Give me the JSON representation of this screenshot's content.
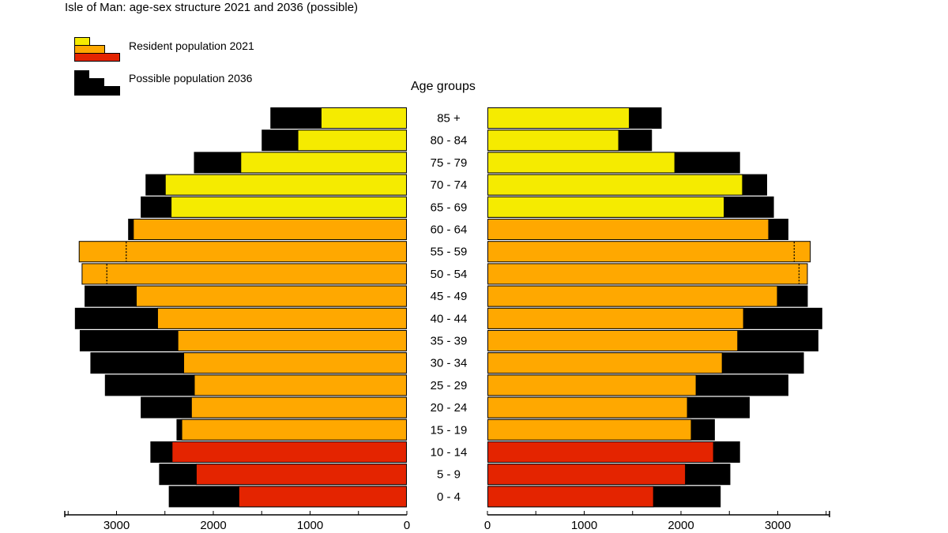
{
  "title": "Isle of Man: age-sex structure 2021 and 2036 (possible)",
  "legend": {
    "resident_label": "Resident population 2021",
    "possible_label": "Possible population 2036"
  },
  "age_header": "Age groups",
  "colors": {
    "old_age": "#F5EB00",
    "working_age": "#FFA800",
    "young_age": "#E42400",
    "projection": "#000000"
  },
  "chart_data": {
    "type": "bar",
    "title": "Isle of Man: age-sex structure 2021 and 2036 (possible)",
    "categories": [
      "85 +",
      "80 - 84",
      "75 - 79",
      "70 - 74",
      "65 - 69",
      "60 - 64",
      "55 - 59",
      "50 - 54",
      "45 - 49",
      "40 - 44",
      "35 - 39",
      "30 - 34",
      "25 - 29",
      "20 - 24",
      "15 - 19",
      "10 - 14",
      "5 - 9",
      "0 - 4"
    ],
    "category_group": [
      "old",
      "old",
      "old",
      "old",
      "old",
      "working",
      "working",
      "working",
      "working",
      "working",
      "working",
      "working",
      "working",
      "working",
      "working",
      "young",
      "young",
      "young"
    ],
    "series": [
      {
        "name": "Resident population 2021",
        "side": "left",
        "values": [
          890,
          1130,
          1720,
          2500,
          2440,
          2830,
          3390,
          3360,
          2800,
          2580,
          2370,
          2310,
          2200,
          2230,
          2330,
          2430,
          2180,
          1740
        ]
      },
      {
        "name": "Possible population 2036",
        "side": "left",
        "values": [
          1410,
          1500,
          2200,
          2700,
          2750,
          2880,
          2900,
          3100,
          3330,
          3430,
          3380,
          3270,
          3120,
          2750,
          2380,
          2650,
          2560,
          2460
        ]
      },
      {
        "name": "Resident population 2021",
        "side": "right",
        "values": [
          1470,
          1360,
          1940,
          2640,
          2450,
          2910,
          3340,
          3310,
          3000,
          2650,
          2590,
          2430,
          2160,
          2070,
          2110,
          2340,
          2050,
          1720
        ]
      },
      {
        "name": "Possible population 2036",
        "side": "right",
        "values": [
          1800,
          1700,
          2610,
          2890,
          2960,
          3110,
          3170,
          3220,
          3310,
          3460,
          3420,
          3270,
          3110,
          2710,
          2350,
          2610,
          2510,
          2410
        ]
      }
    ],
    "xlim": [
      0,
      3500
    ],
    "ticks": [
      "0",
      "1000",
      "2000",
      "3000"
    ],
    "legend_position": "top-left",
    "grid": false
  }
}
